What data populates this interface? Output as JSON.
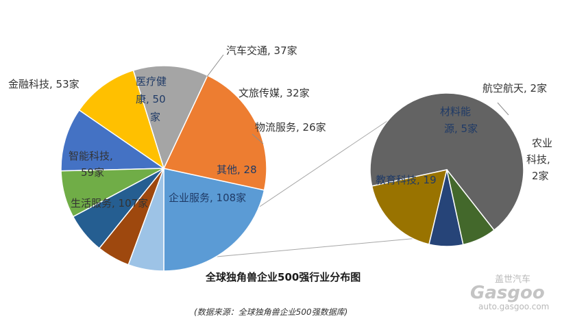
{
  "chart_data": [
    {
      "type": "pie",
      "title": "全球独角兽企业500强行业分布图",
      "slices": [
        {
          "label": "企业服务, 108家",
          "value": 108,
          "color": "#5b9bd5"
        },
        {
          "label": "生活服务, 107家",
          "value": 107,
          "color": "#ed7d31"
        },
        {
          "label": "智能科技, 59家",
          "value": 59,
          "color": "#a5a5a5"
        },
        {
          "label": "金融科技, 53家",
          "value": 53,
          "color": "#ffc000"
        },
        {
          "label": "医疗健康, 50家",
          "value": 50,
          "color": "#4472c4"
        },
        {
          "label": "汽车交通, 37家",
          "value": 37,
          "color": "#70ad47"
        },
        {
          "label": "文旅传媒, 32家",
          "value": 32,
          "color": "#255e91"
        },
        {
          "label": "物流服务, 26家",
          "value": 26,
          "color": "#9e480e"
        },
        {
          "label": "其他, 28",
          "value": 28,
          "color": "#9dc3e6"
        }
      ]
    },
    {
      "type": "pie",
      "title": "其他, 28",
      "slices": [
        {
          "label": "教育科技, 19",
          "value": 19,
          "color": "#636363"
        },
        {
          "label": "材料能源, 5家",
          "value": 5,
          "color": "#997300"
        },
        {
          "label": "航空航天, 2家",
          "value": 2,
          "color": "#264478"
        },
        {
          "label": "农业科技, 2家",
          "value": 2,
          "color": "#43682b"
        }
      ]
    }
  ],
  "labels": {
    "qiye": "企业服务, 108家",
    "shenghuo": "生活服务, 107家",
    "zhineng_1": "智能科技,",
    "zhineng_2": "59家",
    "jinrong": "金融科技, 53家",
    "yiliao_1": "医疗健",
    "yiliao_2": "康, 50",
    "yiliao_3": "家",
    "qiche": "汽车交通, 37家",
    "wenlv": "文旅传媒, 32家",
    "wuliu": "物流服务, 26家",
    "qita": "其他, 28",
    "jiaoyu": "教育科技, 19",
    "cailiao_1": "材料能",
    "cailiao_2": "源, 5家",
    "hangkong": "航空航天, 2家",
    "nongye_1": "农业",
    "nongye_2": "科技,",
    "nongye_3": "2家"
  },
  "title": "全球独角兽企业500强行业分布图",
  "source": "(数据来源：全球独角兽企业500强数据库)",
  "watermark": {
    "brand_cn": "盖世汽车",
    "brand_en": "Gasgoo",
    "url": "auto.gasgoo.com"
  }
}
